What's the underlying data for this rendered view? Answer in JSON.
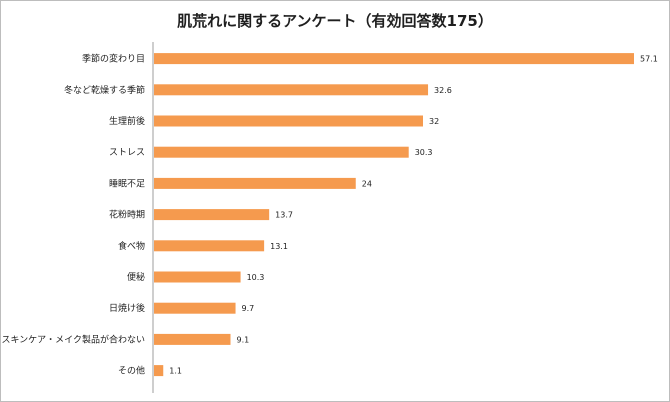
{
  "chart_data": {
    "type": "bar",
    "orientation": "horizontal",
    "title": "肌荒れに関するアンケート（有効回答数175）",
    "categories": [
      "季節の変わり目",
      "冬など乾燥する季節",
      "生理前後",
      "ストレス",
      "睡眠不足",
      "花粉時期",
      "食べ物",
      "便秘",
      "日焼け後",
      "スキンケア・メイク製品が合わない",
      "その他"
    ],
    "values": [
      57.1,
      32.6,
      32,
      30.3,
      24,
      13.7,
      13.1,
      10.3,
      9.7,
      9.1,
      1.1
    ],
    "value_labels": [
      "57.1",
      "32.6",
      "32",
      "30.3",
      "24",
      "13.7",
      "13.1",
      "10.3",
      "9.7",
      "9.1",
      "1.1"
    ],
    "xlim": [
      0,
      60
    ],
    "grid": false,
    "bar_color": "#f59a4e"
  }
}
